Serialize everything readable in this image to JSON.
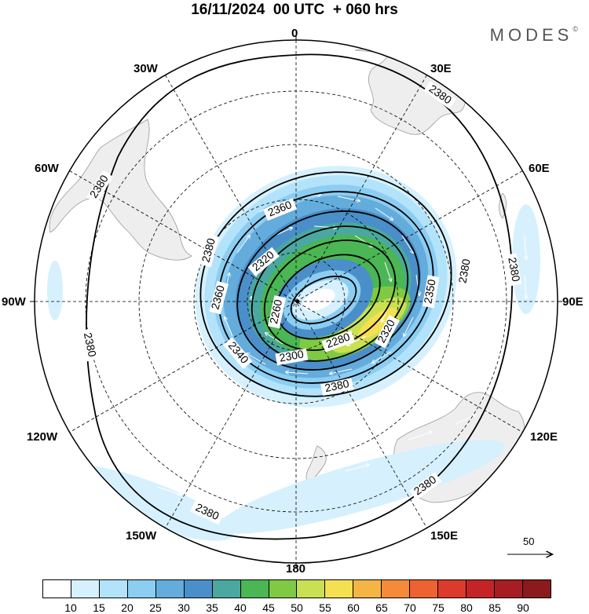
{
  "title": "16/11/2024  00 UTC  + 060 hrs",
  "brand": "MODES",
  "brand_mark": "©",
  "longitude_labels": {
    "top": "0",
    "upper_left": "30W",
    "upper_right": "30E",
    "mid_upper_left": "60W",
    "mid_upper_right": "60E",
    "left": "90W",
    "right": "90E",
    "lower_left": "120W",
    "lower_right": "120E",
    "bottom_left": "150W",
    "bottom_right": "150E",
    "bottom": "180"
  },
  "contour_labels": [
    "2380",
    "2380",
    "2380",
    "2380",
    "2380",
    "2380",
    "2380",
    "2380",
    "2380",
    "2360",
    "2360",
    "2340",
    "2320",
    "2300",
    "2280",
    "2260",
    "2320",
    "2350"
  ],
  "wind_reference": "50",
  "legend": {
    "ticks": [
      "10",
      "15",
      "20",
      "25",
      "30",
      "35",
      "40",
      "45",
      "50",
      "55",
      "60",
      "65",
      "70",
      "75",
      "80",
      "85",
      "90"
    ],
    "colors": [
      "#ffffff",
      "#d6f1fd",
      "#b3e3fa",
      "#8ccdf2",
      "#64acdc",
      "#4a8fc9",
      "#4aa8a0",
      "#4ab654",
      "#7fca42",
      "#c9e052",
      "#f5e052",
      "#f5b545",
      "#f58a3a",
      "#ee6132",
      "#dc3a2c",
      "#c42428",
      "#a71d24",
      "#8a1a1c"
    ]
  },
  "colors": {
    "land": "#eeeeee",
    "coast": "#9a9a9a",
    "contour": "#000000",
    "grid": "#000000"
  }
}
